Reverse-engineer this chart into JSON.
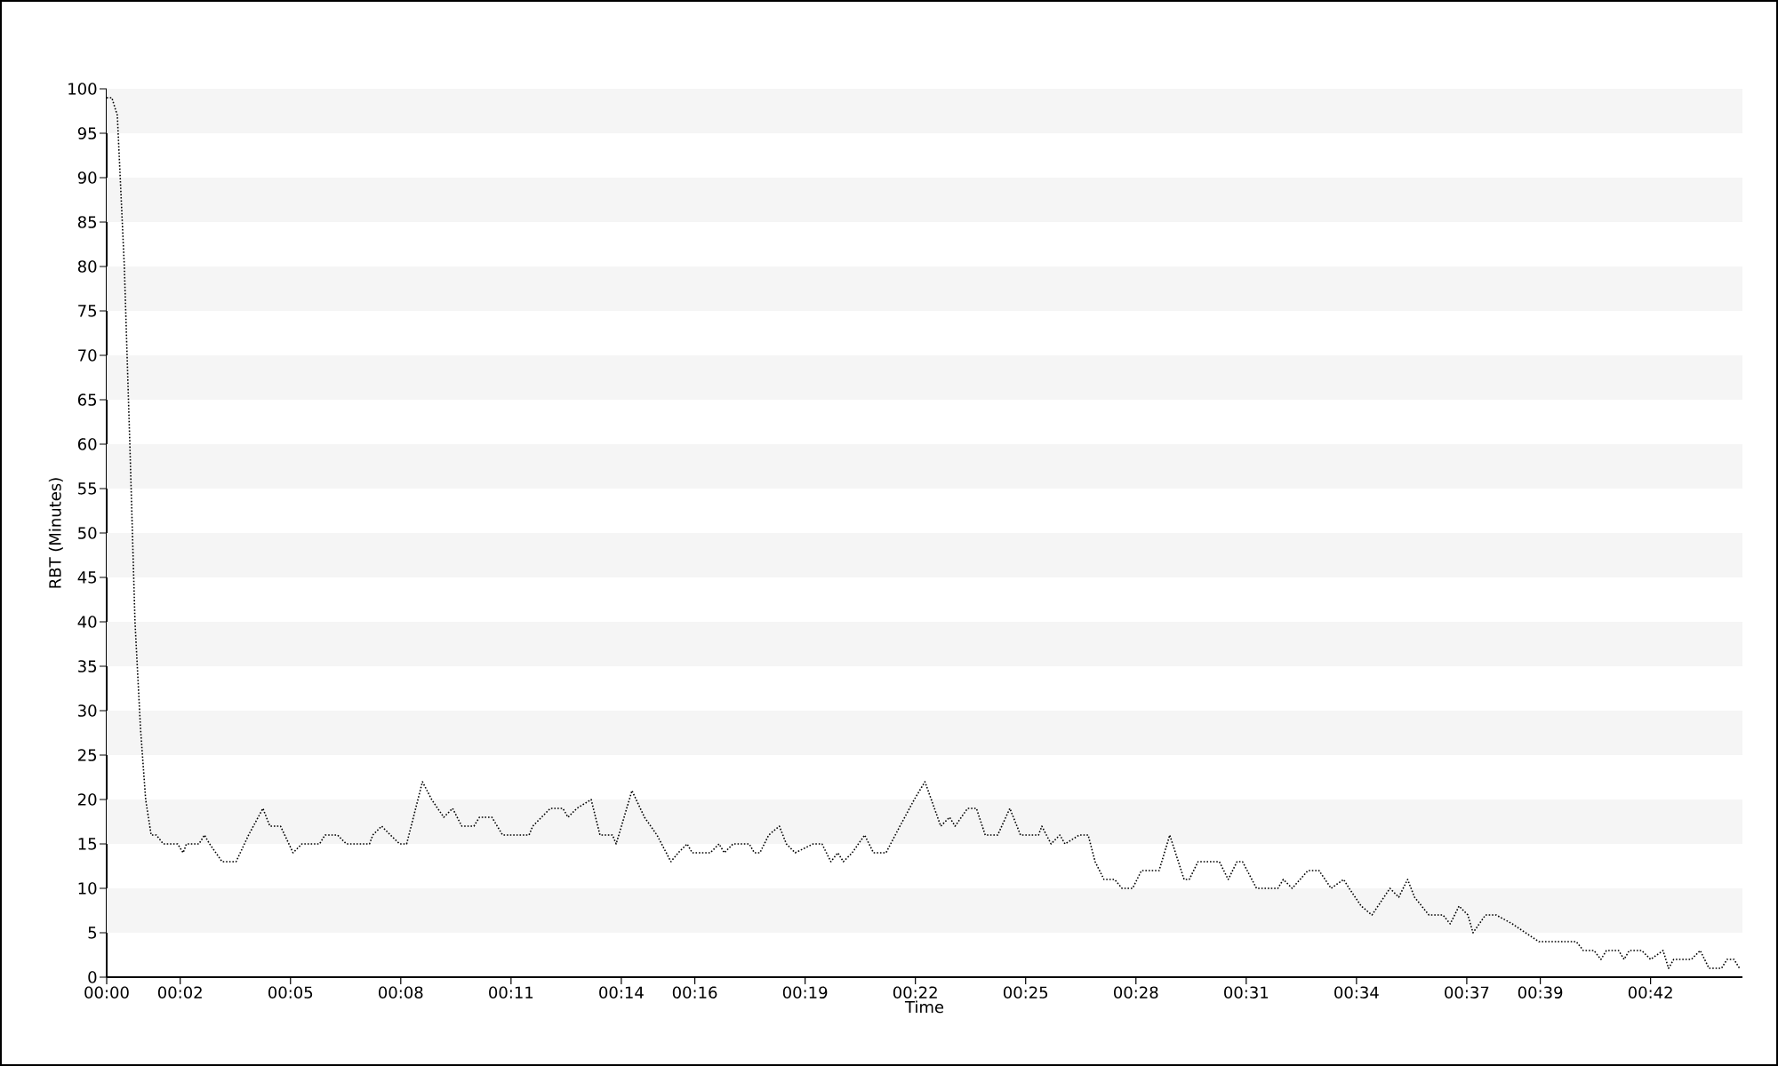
{
  "chart_data": {
    "type": "line",
    "xlabel": "Time",
    "ylabel": "RBT (Minutes)",
    "xlim": [
      0,
      44.5
    ],
    "ylim": [
      0,
      100
    ],
    "xticks": [
      {
        "value": 0,
        "label": "00:00"
      },
      {
        "value": 2,
        "label": "00:02"
      },
      {
        "value": 5,
        "label": "00:05"
      },
      {
        "value": 8,
        "label": "00:08"
      },
      {
        "value": 11,
        "label": "00:11"
      },
      {
        "value": 14,
        "label": "00:14"
      },
      {
        "value": 16,
        "label": "00:16"
      },
      {
        "value": 19,
        "label": "00:19"
      },
      {
        "value": 22,
        "label": "00:22"
      },
      {
        "value": 25,
        "label": "00:25"
      },
      {
        "value": 28,
        "label": "00:28"
      },
      {
        "value": 31,
        "label": "00:31"
      },
      {
        "value": 34,
        "label": "00:34"
      },
      {
        "value": 37,
        "label": "00:37"
      },
      {
        "value": 39,
        "label": "00:39"
      },
      {
        "value": 42,
        "label": "00:42"
      }
    ],
    "yticks": [
      0,
      5,
      10,
      15,
      20,
      25,
      30,
      35,
      40,
      45,
      50,
      55,
      60,
      65,
      70,
      75,
      80,
      85,
      90,
      95,
      100
    ],
    "bands": [
      {
        "axis": "y",
        "from": 5,
        "to": 10,
        "color": "#f5f5f5"
      },
      {
        "axis": "y",
        "from": 15,
        "to": 20,
        "color": "#f5f5f5"
      },
      {
        "axis": "y",
        "from": 25,
        "to": 30,
        "color": "#f5f5f5"
      },
      {
        "axis": "y",
        "from": 35,
        "to": 40,
        "color": "#f5f5f5"
      },
      {
        "axis": "y",
        "from": 45,
        "to": 50,
        "color": "#f5f5f5"
      },
      {
        "axis": "y",
        "from": 55,
        "to": 60,
        "color": "#f5f5f5"
      },
      {
        "axis": "y",
        "from": 65,
        "to": 70,
        "color": "#f5f5f5"
      },
      {
        "axis": "y",
        "from": 75,
        "to": 80,
        "color": "#f5f5f5"
      },
      {
        "axis": "y",
        "from": 85,
        "to": 90,
        "color": "#f5f5f5"
      },
      {
        "axis": "y",
        "from": 95,
        "to": 100,
        "color": "#f5f5f5"
      }
    ],
    "line_style": "dotted",
    "marker": "none",
    "series": [
      {
        "color": "#000000",
        "x": [
          0,
          0.14,
          0.29,
          0.48,
          0.63,
          0.77,
          0.92,
          1.06,
          1.21,
          1.35,
          1.54,
          1.93,
          2.08,
          2.17,
          2.51,
          2.66,
          2.8,
          3.14,
          3.52,
          3.86,
          4.25,
          4.44,
          4.73,
          5.07,
          5.31,
          5.79,
          5.94,
          6.28,
          6.52,
          6.76,
          7.15,
          7.24,
          7.48,
          7.72,
          7.97,
          8.16,
          8.59,
          8.84,
          9.17,
          9.41,
          9.66,
          9.99,
          10.14,
          10.48,
          10.77,
          11.49,
          11.59,
          12.07,
          12.41,
          12.55,
          12.79,
          13.18,
          13.42,
          13.76,
          13.86,
          14.29,
          14.63,
          14.97,
          15.35,
          15.55,
          15.79,
          15.93,
          16.42,
          16.66,
          16.8,
          17.04,
          17.48,
          17.62,
          17.77,
          18.01,
          18.3,
          18.49,
          18.73,
          19.22,
          19.46,
          19.7,
          19.89,
          20.04,
          20.28,
          20.62,
          20.86,
          21.2,
          21.58,
          21.97,
          22.26,
          22.69,
          22.93,
          23.08,
          23.42,
          23.66,
          23.9,
          24.24,
          24.57,
          24.86,
          25.35,
          25.44,
          25.69,
          25.93,
          26.07,
          26.46,
          26.7,
          26.89,
          27.13,
          27.42,
          27.62,
          27.91,
          28.15,
          28.63,
          28.92,
          29.31,
          29.45,
          29.69,
          30.27,
          30.51,
          30.75,
          30.9,
          31.28,
          31.86,
          32.01,
          32.25,
          32.68,
          32.98,
          33.31,
          33.65,
          33.8,
          34.13,
          34.42,
          34.91,
          35.15,
          35.39,
          35.58,
          35.97,
          36.35,
          36.55,
          36.79,
          37.03,
          37.17,
          37.51,
          37.8,
          38.24,
          38.96,
          39.98,
          40.17,
          40.46,
          40.65,
          40.8,
          41.13,
          41.28,
          41.42,
          41.76,
          42.0,
          42.34,
          42.49,
          42.63,
          43.11,
          43.35,
          43.59,
          43.93,
          44.08,
          44.27,
          44.42
        ],
        "values": [
          99,
          99,
          97,
          80,
          60,
          40,
          28,
          20,
          16,
          16,
          15,
          15,
          14,
          15,
          15,
          16,
          15,
          13,
          13,
          16,
          19,
          17,
          17,
          14,
          15,
          15,
          16,
          16,
          15,
          15,
          15,
          16,
          17,
          16,
          15,
          15,
          22,
          20,
          18,
          19,
          17,
          17,
          18,
          18,
          16,
          16,
          17,
          19,
          19,
          18,
          19,
          20,
          16,
          16,
          15,
          21,
          18,
          16,
          13,
          14,
          15,
          14,
          14,
          15,
          14,
          15,
          15,
          14,
          14,
          16,
          17,
          15,
          14,
          15,
          15,
          13,
          14,
          13,
          14,
          16,
          14,
          14,
          17,
          20,
          22,
          17,
          18,
          17,
          19,
          19,
          16,
          16,
          19,
          16,
          16,
          17,
          15,
          16,
          15,
          16,
          16,
          13,
          11,
          11,
          10,
          10,
          12,
          12,
          16,
          11,
          11,
          13,
          13,
          11,
          13,
          13,
          10,
          10,
          11,
          10,
          12,
          12,
          10,
          11,
          10,
          8,
          7,
          10,
          9,
          11,
          9,
          7,
          7,
          6,
          8,
          7,
          5,
          7,
          7,
          6,
          4,
          4,
          3,
          3,
          2,
          3,
          3,
          2,
          3,
          3,
          2,
          3,
          1,
          2,
          2,
          3,
          1,
          1,
          2,
          2,
          1
        ]
      }
    ]
  }
}
